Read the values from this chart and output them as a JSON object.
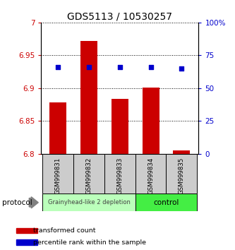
{
  "title": "GDS5113 / 10530257",
  "samples": [
    "GSM999831",
    "GSM999832",
    "GSM999833",
    "GSM999834",
    "GSM999835"
  ],
  "bar_values": [
    6.878,
    6.972,
    6.884,
    6.901,
    6.805
  ],
  "bar_bottom": 6.8,
  "dot_percentile": [
    66,
    66,
    66,
    66,
    65
  ],
  "ylim_left": [
    6.8,
    7.0
  ],
  "ylim_right": [
    0,
    100
  ],
  "yticks_left": [
    6.8,
    6.85,
    6.9,
    6.95,
    7.0
  ],
  "yticks_right": [
    0,
    25,
    50,
    75,
    100
  ],
  "ytick_labels_left": [
    "6.8",
    "6.85",
    "6.9",
    "6.95",
    "7"
  ],
  "ytick_labels_right": [
    "0",
    "25",
    "50",
    "75",
    "100%"
  ],
  "bar_color": "#cc0000",
  "dot_color": "#0000cc",
  "group1_samples": [
    0,
    1,
    2
  ],
  "group2_samples": [
    3,
    4
  ],
  "group1_label": "Grainyhead-like 2 depletion",
  "group2_label": "control",
  "group1_color": "#bbffbb",
  "group2_color": "#44ee44",
  "protocol_label": "protocol",
  "legend_bar_label": "transformed count",
  "legend_dot_label": "percentile rank within the sample",
  "bar_width": 0.55,
  "xlabel_tick_bg": "#cccccc"
}
